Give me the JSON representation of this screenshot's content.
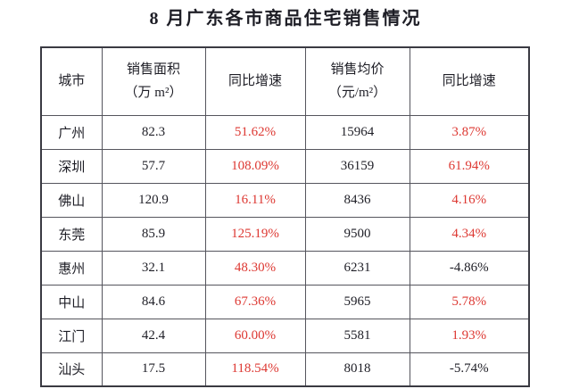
{
  "title": "8 月广东各市商品住宅销售情况",
  "colors": {
    "accent_red": "#dd3832",
    "text": "#1e1e26",
    "border": "#55555d"
  },
  "table": {
    "headers": [
      {
        "line1": "城市",
        "line2": ""
      },
      {
        "line1": "销售面积",
        "line2": "（万 m²）"
      },
      {
        "line1": "同比增速",
        "line2": ""
      },
      {
        "line1": "销售均价",
        "line2": "（元/m²）"
      },
      {
        "line1": "同比增速",
        "line2": ""
      }
    ],
    "rows": [
      {
        "city": "广州",
        "cells": [
          {
            "text": "82.3",
            "red": false,
            "bold": false
          },
          {
            "text": "51.62%",
            "red": true,
            "bold": false
          },
          {
            "text": "15964",
            "red": false,
            "bold": false
          },
          {
            "text": "3.87%",
            "red": true,
            "bold": false
          }
        ]
      },
      {
        "city": "深圳",
        "cells": [
          {
            "text": "57.7",
            "red": false,
            "bold": false
          },
          {
            "text": "108.09%",
            "red": true,
            "bold": false
          },
          {
            "text": "36159",
            "red": false,
            "bold": true
          },
          {
            "text": "61.94%",
            "red": true,
            "bold": true
          }
        ]
      },
      {
        "city": "佛山",
        "cells": [
          {
            "text": "120.9",
            "red": false,
            "bold": true
          },
          {
            "text": "16.11%",
            "red": true,
            "bold": false
          },
          {
            "text": "8436",
            "red": false,
            "bold": false
          },
          {
            "text": "4.16%",
            "red": true,
            "bold": false
          }
        ]
      },
      {
        "city": "东莞",
        "cells": [
          {
            "text": "85.9",
            "red": false,
            "bold": false
          },
          {
            "text": "125.19%",
            "red": true,
            "bold": false
          },
          {
            "text": "9500",
            "red": false,
            "bold": false
          },
          {
            "text": "4.34%",
            "red": true,
            "bold": false
          }
        ]
      },
      {
        "city": "惠州",
        "cells": [
          {
            "text": "32.1",
            "red": false,
            "bold": false
          },
          {
            "text": "48.30%",
            "red": true,
            "bold": false
          },
          {
            "text": "6231",
            "red": false,
            "bold": false
          },
          {
            "text": "-4.86%",
            "red": false,
            "bold": false
          }
        ]
      },
      {
        "city": "中山",
        "cells": [
          {
            "text": "84.6",
            "red": false,
            "bold": false
          },
          {
            "text": "67.36%",
            "red": true,
            "bold": false
          },
          {
            "text": "5965",
            "red": false,
            "bold": false
          },
          {
            "text": "5.78%",
            "red": true,
            "bold": false
          }
        ]
      },
      {
        "city": "江门",
        "cells": [
          {
            "text": "42.4",
            "red": false,
            "bold": false
          },
          {
            "text": "60.00%",
            "red": true,
            "bold": false
          },
          {
            "text": "5581",
            "red": false,
            "bold": false
          },
          {
            "text": "1.93%",
            "red": true,
            "bold": false
          }
        ]
      },
      {
        "city": "汕头",
        "cells": [
          {
            "text": "17.5",
            "red": false,
            "bold": false
          },
          {
            "text": "118.54%",
            "red": true,
            "bold": false
          },
          {
            "text": "8018",
            "red": false,
            "bold": false
          },
          {
            "text": "-5.74%",
            "red": false,
            "bold": false
          }
        ]
      }
    ]
  }
}
